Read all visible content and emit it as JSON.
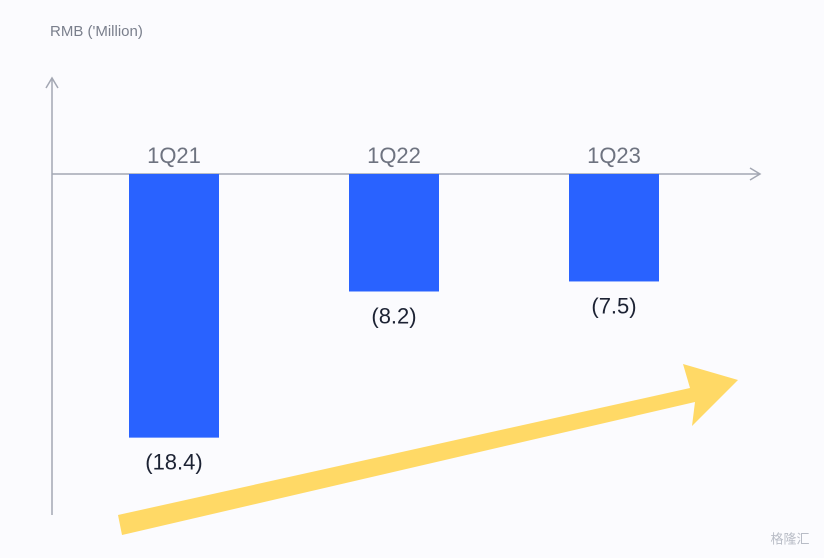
{
  "chart_data": {
    "type": "bar",
    "y_axis_label": "RMB ('Million)",
    "categories": [
      "1Q21",
      "1Q22",
      "1Q23"
    ],
    "values": [
      -18.4,
      -8.2,
      -7.5
    ],
    "value_labels": [
      "(18.4)",
      "(8.2)",
      "(7.5)"
    ],
    "color": "#2962ff",
    "ylim": [
      -23.8,
      6.7
    ],
    "watermark": "格隆汇"
  }
}
